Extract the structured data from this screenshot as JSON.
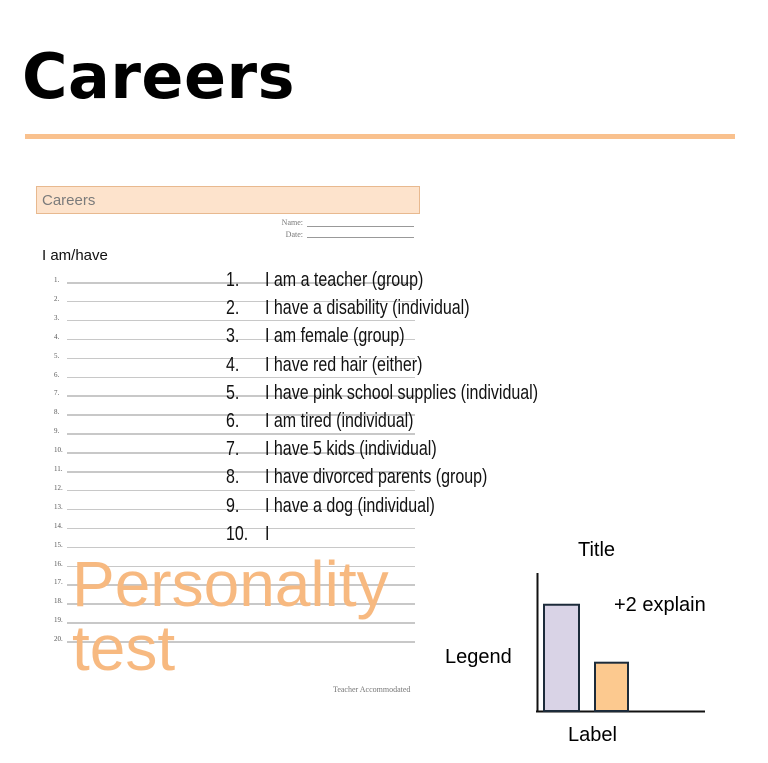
{
  "slide": {
    "title": "Careers",
    "accent_color": "#f9c18e"
  },
  "worksheet": {
    "header": "Careers",
    "name_label": "Name:",
    "date_label": "Date:",
    "prompt": "I am/have",
    "line_numbers": [
      "1.",
      "2.",
      "3.",
      "4.",
      "5.",
      "6.",
      "7.",
      "8.",
      "9.",
      "10.",
      "11.",
      "12.",
      "13.",
      "14.",
      "15.",
      "16.",
      "17.",
      "18.",
      "19.",
      "20."
    ],
    "footer": "Teacher Accommodated"
  },
  "statements": [
    {
      "num": "1.",
      "text": "I am a teacher (group)"
    },
    {
      "num": "2.",
      "text": "I have a disability (individual)"
    },
    {
      "num": "3.",
      "text": "I am female (group)"
    },
    {
      "num": "4.",
      "text": "I have red hair (either)"
    },
    {
      "num": "5.",
      "text": "I have pink school supplies (individual)"
    },
    {
      "num": "6.",
      "text": "I am tired (individual)"
    },
    {
      "num": "7.",
      "text": "I have 5 kids (individual)"
    },
    {
      "num": "8.",
      "text": "I have divorced parents (group)"
    },
    {
      "num": "9.",
      "text": "I have a dog (individual)"
    },
    {
      "num": "10.",
      "text": "I"
    }
  ],
  "watermark": "Personality test",
  "diagram": {
    "title": "Title",
    "y_label": "Legend",
    "x_label": "Label",
    "note": "+2 explain",
    "bars": [
      {
        "relative_height": 0.77,
        "color": "#d9d3e6"
      },
      {
        "relative_height": 0.35,
        "color": "#fcc98f"
      }
    ]
  }
}
